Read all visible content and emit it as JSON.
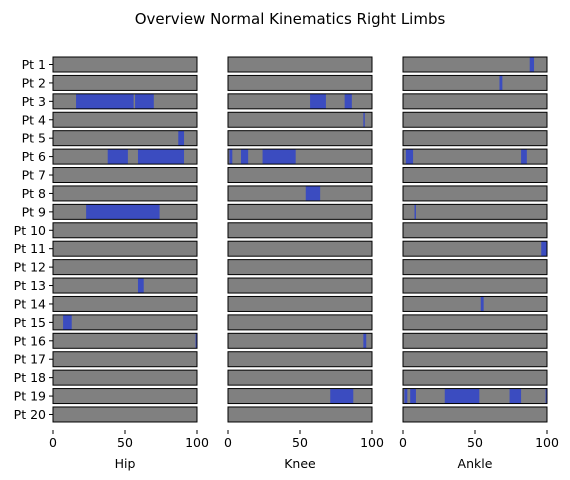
{
  "chart_data": {
    "type": "bar",
    "title": "Overview Normal Kinematics Right Limbs",
    "patients": [
      "Pt 1",
      "Pt 2",
      "Pt 3",
      "Pt 4",
      "Pt 5",
      "Pt 6",
      "Pt 7",
      "Pt 8",
      "Pt 9",
      "Pt 10",
      "Pt 11",
      "Pt 12",
      "Pt 13",
      "Pt 14",
      "Pt 15",
      "Pt 16",
      "Pt 17",
      "Pt 18",
      "Pt 19",
      "Pt 20"
    ],
    "xlim": [
      0,
      100
    ],
    "xticks": [
      0,
      50,
      100
    ],
    "colors": {
      "background_bar": "#808080",
      "normal_segment": "#3b4cc0",
      "bar_border": "#000000"
    },
    "panels": [
      {
        "xlabel": "Hip",
        "segments": [
          [],
          [],
          [
            [
              16,
              56
            ],
            [
              57,
              70
            ]
          ],
          [],
          [
            [
              87,
              91
            ]
          ],
          [
            [
              38,
              52
            ],
            [
              59,
              91
            ]
          ],
          [],
          [],
          [
            [
              23,
              74
            ]
          ],
          [],
          [],
          [],
          [
            [
              59,
              63
            ]
          ],
          [],
          [
            [
              7,
              13
            ]
          ],
          [
            [
              99,
              100
            ]
          ],
          [],
          [],
          [],
          []
        ]
      },
      {
        "xlabel": "Knee",
        "segments": [
          [],
          [],
          [
            [
              57,
              68
            ],
            [
              81,
              86
            ]
          ],
          [
            [
              94,
              95
            ]
          ],
          [],
          [
            [
              1,
              3
            ],
            [
              9,
              14
            ],
            [
              24,
              47
            ]
          ],
          [],
          [
            [
              54,
              64
            ]
          ],
          [],
          [],
          [],
          [],
          [],
          [],
          [],
          [
            [
              94,
              96
            ]
          ],
          [],
          [],
          [
            [
              71,
              87
            ]
          ],
          []
        ]
      },
      {
        "xlabel": "Ankle",
        "segments": [
          [
            [
              88,
              91
            ]
          ],
          [
            [
              67,
              69
            ]
          ],
          [],
          [],
          [],
          [
            [
              2,
              7
            ],
            [
              82,
              86
            ]
          ],
          [],
          [],
          [
            [
              8,
              9
            ]
          ],
          [],
          [
            [
              96,
              100
            ]
          ],
          [],
          [],
          [
            [
              54,
              56
            ]
          ],
          [],
          [],
          [],
          [],
          [
            [
              1,
              3
            ],
            [
              5,
              9
            ],
            [
              29,
              53
            ],
            [
              74,
              82
            ],
            [
              99,
              100
            ]
          ],
          []
        ]
      }
    ]
  }
}
